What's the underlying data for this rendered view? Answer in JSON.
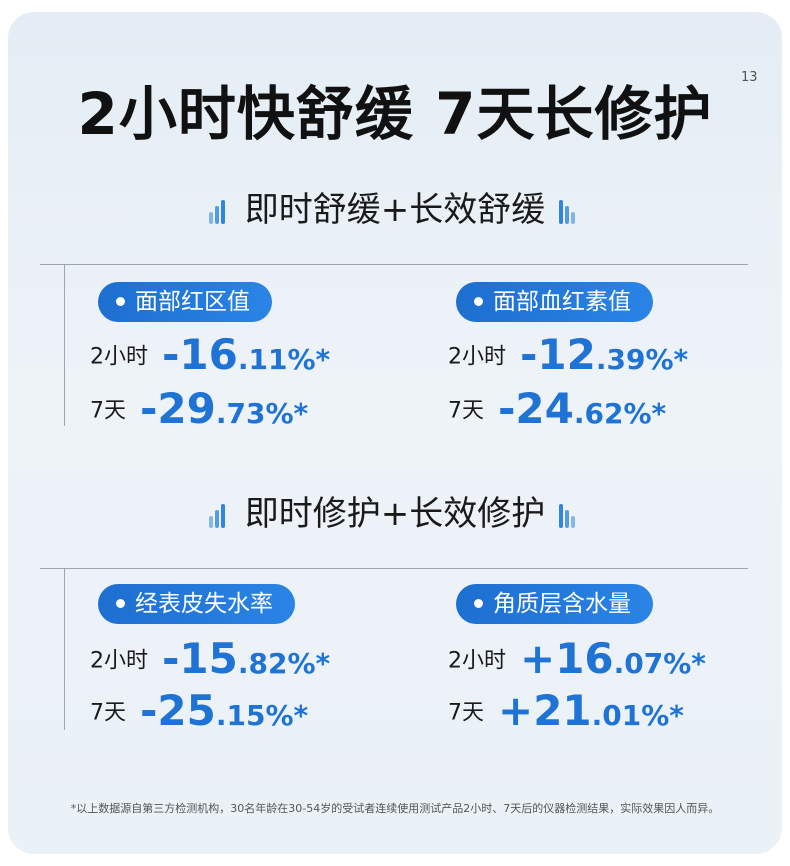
{
  "title": {
    "main": "2小时快舒缓 7天长修护",
    "note": "13"
  },
  "sections": [
    {
      "heading": "即时舒缓+长效舒缓",
      "metrics": [
        {
          "name": "面部红区值",
          "rows": [
            {
              "label": "2小时",
              "int": "-16",
              "dec": ".11%*"
            },
            {
              "label": "7天",
              "int": "-29",
              "dec": ".73%*"
            }
          ]
        },
        {
          "name": "面部血红素值",
          "rows": [
            {
              "label": "2小时",
              "int": "-12",
              "dec": ".39%*"
            },
            {
              "label": "7天",
              "int": "-24",
              "dec": ".62%*"
            }
          ]
        }
      ]
    },
    {
      "heading": "即时修护+长效修护",
      "metrics": [
        {
          "name": "经表皮失水率",
          "rows": [
            {
              "label": "2小时",
              "int": "-15",
              "dec": ".82%*"
            },
            {
              "label": "7天",
              "int": "-25",
              "dec": ".15%*"
            }
          ]
        },
        {
          "name": "角质层含水量",
          "rows": [
            {
              "label": "2小时",
              "int": "+16",
              "dec": ".07%*"
            },
            {
              "label": "7天",
              "int": "+21",
              "dec": ".01%*"
            }
          ]
        }
      ]
    }
  ],
  "footnote": "*以上数据源自第三方检测机构，30名年龄在30-54岁的受试者连续使用测试产品2小时、7天后的仪器检测结果，实际效果因人而异。",
  "colors": {
    "accent": "#1f73d4",
    "pill": "#2a84e6",
    "text": "#111111"
  },
  "icons": {
    "heading_decoration": "bars-icon"
  }
}
